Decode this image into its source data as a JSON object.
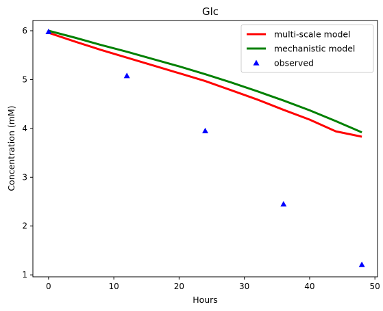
{
  "chart_data": {
    "type": "line",
    "title": "Glc",
    "xlabel": "Hours",
    "ylabel": "Concentration (mM)",
    "xlim": [
      -2.4,
      50.4
    ],
    "ylim": [
      0.96,
      6.21
    ],
    "xticks": [
      0,
      10,
      20,
      30,
      40,
      50
    ],
    "yticks": [
      1,
      2,
      3,
      4,
      5,
      6
    ],
    "grid": false,
    "legend_position": "top-right",
    "series": [
      {
        "name": "multi-scale model",
        "kind": "line",
        "color": "#ff0000",
        "x": [
          0,
          4,
          8,
          12,
          16,
          20,
          24,
          28,
          32,
          36,
          40,
          44,
          48
        ],
        "y": [
          5.96,
          5.78,
          5.61,
          5.45,
          5.29,
          5.13,
          4.97,
          4.78,
          4.59,
          4.38,
          4.18,
          3.94,
          3.83
        ]
      },
      {
        "name": "mechanistic model",
        "kind": "line",
        "color": "#008000",
        "x": [
          0,
          4,
          8,
          12,
          16,
          20,
          24,
          28,
          32,
          36,
          40,
          44,
          48
        ],
        "y": [
          6.0,
          5.86,
          5.71,
          5.57,
          5.42,
          5.27,
          5.11,
          4.94,
          4.76,
          4.57,
          4.37,
          4.15,
          3.92
        ]
      },
      {
        "name": "observed",
        "kind": "scatter",
        "marker": "triangle",
        "color": "#0000ff",
        "x": [
          0,
          12,
          24,
          36,
          48
        ],
        "y": [
          5.98,
          5.08,
          3.95,
          2.45,
          1.21
        ]
      }
    ]
  }
}
